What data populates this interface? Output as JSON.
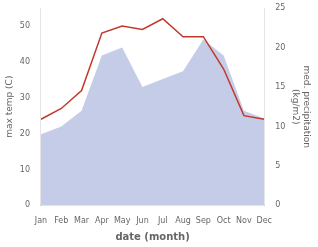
{
  "chart_data": {
    "type": "line",
    "categories": [
      "Jan",
      "Feb",
      "Mar",
      "Apr",
      "May",
      "Jun",
      "Jul",
      "Aug",
      "Sep",
      "Oct",
      "Nov",
      "Dec"
    ],
    "series": [
      {
        "type": "area",
        "color": "#c5cce8",
        "axis": "y2",
        "values": [
          9,
          10,
          12,
          19,
          20,
          15,
          16,
          17,
          21,
          19,
          12,
          11
        ]
      },
      {
        "type": "line",
        "color": "#c0392b",
        "values": [
          24,
          27,
          32,
          48,
          50,
          49,
          52,
          47,
          47,
          38,
          25,
          24
        ]
      }
    ],
    "xlabel": "date (month)",
    "ylabel": "max temp (C)",
    "y2label": "med. precipitation\n(kg/m2)",
    "ylim": [
      0,
      55
    ],
    "yticks": [
      0,
      10,
      20,
      30,
      40,
      50
    ],
    "y2lim": [
      0,
      25
    ],
    "y2ticks": [
      0,
      5,
      10,
      15,
      20,
      25
    ],
    "grid": false
  }
}
